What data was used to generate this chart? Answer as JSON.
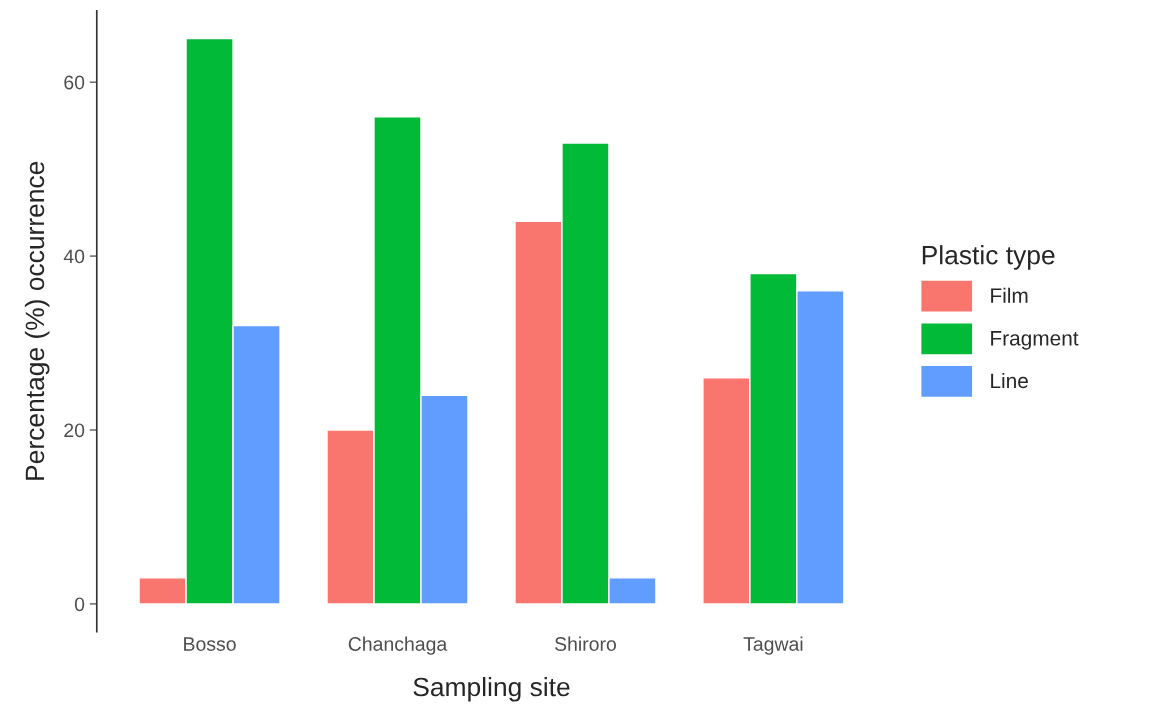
{
  "chart_data": {
    "type": "bar",
    "xlabel": "Sampling site",
    "ylabel": "Percentage (%) occurrence",
    "legend_title": "Plastic type",
    "categories": [
      "Bosso",
      "Chanchaga",
      "Shiroro",
      "Tagwai"
    ],
    "series": [
      {
        "name": "Film",
        "color": "#f8766d",
        "values": [
          3,
          20,
          44,
          26
        ]
      },
      {
        "name": "Fragment",
        "color": "#00ba38",
        "values": [
          65,
          56,
          53,
          38
        ]
      },
      {
        "name": "Line",
        "color": "#619cff",
        "values": [
          32,
          24,
          3,
          36
        ]
      }
    ],
    "ylim": [
      -3.2,
      68.2
    ],
    "yticks": [
      0,
      20,
      40,
      60
    ],
    "grid": false,
    "legend": "right"
  }
}
